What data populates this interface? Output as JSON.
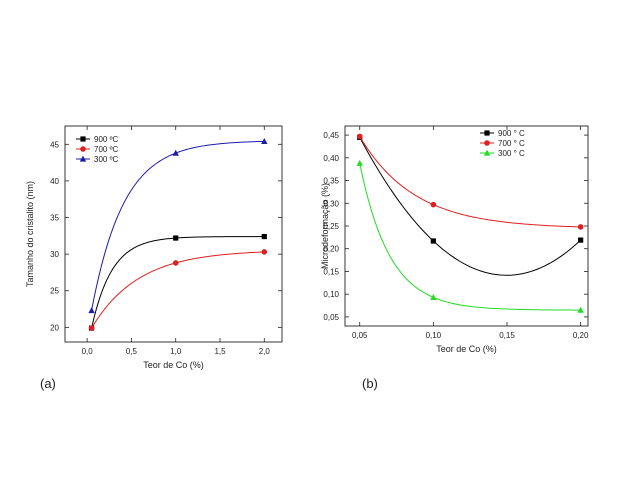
{
  "chart_data": [
    {
      "type": "scatter",
      "panel_label": "(a)",
      "xlabel": "Teor de Co (%)",
      "ylabel": "Tamanho do cristalito (nm)",
      "xlim": [
        -0.25,
        2.2
      ],
      "ylim": [
        18,
        47.5
      ],
      "xticks": [
        0.0,
        0.5,
        1.0,
        1.5,
        2.0
      ],
      "xtick_labels": [
        "0,0",
        "0,5",
        "1,0",
        "1,5",
        "2,0"
      ],
      "yticks": [
        20,
        25,
        30,
        35,
        40,
        45
      ],
      "ytick_labels": [
        "20",
        "25",
        "30",
        "35",
        "40",
        "45"
      ],
      "legend_position": "top-left",
      "fitted_curves": true,
      "series": [
        {
          "name": "900 ºC",
          "color": "#000000",
          "marker": "square",
          "x": [
            0.05,
            1.0,
            2.0
          ],
          "y": [
            19.9,
            32.2,
            32.4
          ]
        },
        {
          "name": "700 ºC",
          "color": "#e02020",
          "marker": "circle",
          "x": [
            0.05,
            1.0,
            2.0
          ],
          "y": [
            19.9,
            28.8,
            30.3
          ]
        },
        {
          "name": "300 ºC",
          "color": "#1c1caa",
          "marker": "triangle",
          "x": [
            0.05,
            1.0,
            2.0
          ],
          "y": [
            22.3,
            43.8,
            45.4
          ]
        }
      ]
    },
    {
      "type": "scatter",
      "panel_label": "(b)",
      "xlabel": "Teor de Co (%)",
      "ylabel": "Microdeformação (%)",
      "xlim": [
        0.04,
        0.205
      ],
      "ylim": [
        0.03,
        0.47
      ],
      "xticks": [
        0.05,
        0.1,
        0.15,
        0.2
      ],
      "xtick_labels": [
        "0,05",
        "0,10",
        "0,15",
        "0,20"
      ],
      "yticks": [
        0.05,
        0.1,
        0.15,
        0.2,
        0.25,
        0.3,
        0.35,
        0.4,
        0.45
      ],
      "ytick_labels": [
        "0,05",
        "0,10",
        "0,15",
        "0,20",
        "0,25",
        "0,30",
        "0,35",
        "0,40",
        "0,45"
      ],
      "legend_position": "top-right",
      "fitted_curves": true,
      "series": [
        {
          "name": "900 ° C",
          "color": "#000000",
          "marker": "square",
          "x": [
            0.05,
            0.1,
            0.2
          ],
          "y": [
            0.445,
            0.217,
            0.219
          ]
        },
        {
          "name": "700 ° C",
          "color": "#e02020",
          "marker": "circle",
          "x": [
            0.05,
            0.1,
            0.2
          ],
          "y": [
            0.447,
            0.297,
            0.248
          ]
        },
        {
          "name": "300 ° C",
          "color": "#22dd22",
          "marker": "triangle",
          "x": [
            0.05,
            0.1,
            0.2
          ],
          "y": [
            0.388,
            0.093,
            0.065
          ]
        }
      ]
    }
  ]
}
